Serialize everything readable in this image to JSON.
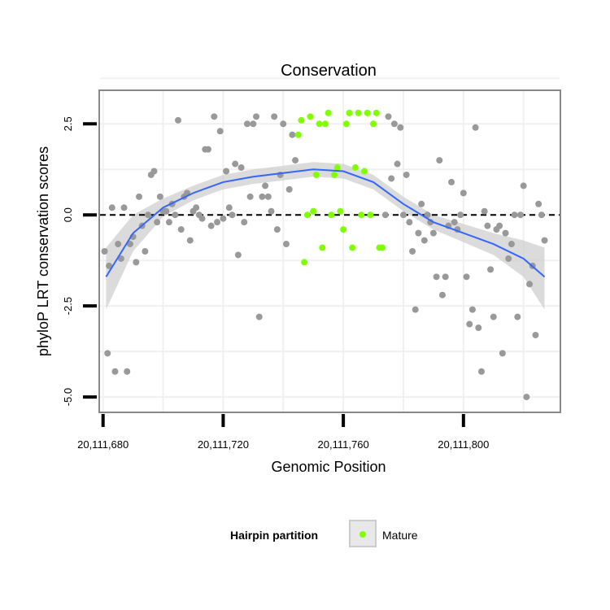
{
  "chart_data": {
    "type": "scatter",
    "title": "Conservation",
    "xlabel": "Genomic Position",
    "ylabel": "phyloP LRT conservation scores",
    "xlim": [
      20111679,
      20111832
    ],
    "ylim": [
      -5.4,
      3.4
    ],
    "x_ticks": [
      {
        "value": 20111680,
        "label": "20,111,680"
      },
      {
        "value": 20111720,
        "label": "20,111,720"
      },
      {
        "value": 20111760,
        "label": "20,111,760"
      },
      {
        "value": 20111800,
        "label": "20,111,800"
      }
    ],
    "y_ticks": [
      {
        "value": -5,
        "label": "-5.0"
      },
      {
        "value": -2.5,
        "label": "-2.5"
      },
      {
        "value": 0,
        "label": "0.0"
      },
      {
        "value": 2.5,
        "label": "2.5"
      }
    ],
    "grid": true,
    "reference_line": {
      "y": 0,
      "style": "dashed"
    },
    "legend": {
      "title": "Hairpin partition",
      "position": "bottom",
      "entries": [
        {
          "name": "Mature",
          "color": "#7fff00"
        }
      ]
    },
    "series": [
      {
        "name": "",
        "color": "#999999",
        "points": [
          [
            20111680.5,
            -1.0
          ],
          [
            20111681.5,
            -3.8
          ],
          [
            20111682,
            -1.4
          ],
          [
            20111683,
            0.2
          ],
          [
            20111684,
            -4.3
          ],
          [
            20111685,
            -0.8
          ],
          [
            20111686,
            -1.2
          ],
          [
            20111687,
            0.2
          ],
          [
            20111688,
            -4.3
          ],
          [
            20111689,
            -0.8
          ],
          [
            20111690,
            -0.6
          ],
          [
            20111691,
            -1.3
          ],
          [
            20111692,
            0.5
          ],
          [
            20111693,
            -0.3
          ],
          [
            20111694,
            -1.0
          ],
          [
            20111695,
            0.0
          ],
          [
            20111696,
            1.1
          ],
          [
            20111697,
            1.2
          ],
          [
            20111698,
            -0.2
          ],
          [
            20111699,
            0.5
          ],
          [
            20111700,
            0.1
          ],
          [
            20111701,
            0.1
          ],
          [
            20111702,
            -0.2
          ],
          [
            20111703,
            0.3
          ],
          [
            20111704,
            0.0
          ],
          [
            20111705,
            2.6
          ],
          [
            20111706,
            -0.4
          ],
          [
            20111707,
            0.5
          ],
          [
            20111708,
            0.6
          ],
          [
            20111709,
            -0.7
          ],
          [
            20111710,
            0.1
          ],
          [
            20111711,
            0.2
          ],
          [
            20111712,
            0.0
          ],
          [
            20111713,
            -0.1
          ],
          [
            20111714,
            1.8
          ],
          [
            20111715,
            1.8
          ],
          [
            20111716,
            -0.3
          ],
          [
            20111717,
            2.7
          ],
          [
            20111718,
            -0.2
          ],
          [
            20111719,
            2.3
          ],
          [
            20111720,
            -0.1
          ],
          [
            20111721,
            1.2
          ],
          [
            20111722,
            0.2
          ],
          [
            20111723,
            0.0
          ],
          [
            20111724,
            1.4
          ],
          [
            20111725,
            -1.1
          ],
          [
            20111726,
            1.3
          ],
          [
            20111727,
            -0.2
          ],
          [
            20111728,
            2.5
          ],
          [
            20111729,
            0.5
          ],
          [
            20111730,
            2.5
          ],
          [
            20111731,
            2.7
          ],
          [
            20111732,
            -2.8
          ],
          [
            20111733,
            0.5
          ],
          [
            20111734,
            0.8
          ],
          [
            20111735,
            0.5
          ],
          [
            20111736,
            0.1
          ],
          [
            20111737,
            2.7
          ],
          [
            20111738,
            -0.4
          ],
          [
            20111739,
            1.1
          ],
          [
            20111740,
            2.5
          ],
          [
            20111741,
            -0.8
          ],
          [
            20111742,
            0.7
          ],
          [
            20111743,
            2.2
          ],
          [
            20111744,
            1.5
          ],
          [
            20111774,
            0.0
          ],
          [
            20111775,
            2.7
          ],
          [
            20111776,
            1.0
          ],
          [
            20111777,
            2.5
          ],
          [
            20111778,
            1.4
          ],
          [
            20111779,
            2.4
          ],
          [
            20111780,
            0.0
          ],
          [
            20111781,
            1.1
          ],
          [
            20111782,
            -0.2
          ],
          [
            20111783,
            -1.0
          ],
          [
            20111784,
            -2.6
          ],
          [
            20111785,
            -0.5
          ],
          [
            20111786,
            0.3
          ],
          [
            20111787,
            -0.7
          ],
          [
            20111788,
            0.0
          ],
          [
            20111789,
            -0.2
          ],
          [
            20111790,
            -0.5
          ],
          [
            20111791,
            -1.7
          ],
          [
            20111792,
            1.5
          ],
          [
            20111793,
            -2.2
          ],
          [
            20111794,
            -1.7
          ],
          [
            20111795,
            -0.3
          ],
          [
            20111796,
            0.9
          ],
          [
            20111797,
            -0.2
          ],
          [
            20111798,
            -0.4
          ],
          [
            20111799,
            0.0
          ],
          [
            20111800,
            0.6
          ],
          [
            20111801,
            -1.7
          ],
          [
            20111802,
            -3.0
          ],
          [
            20111803,
            -2.6
          ],
          [
            20111804,
            2.4
          ],
          [
            20111805,
            -3.1
          ],
          [
            20111806,
            -4.3
          ],
          [
            20111807,
            0.1
          ],
          [
            20111808,
            -0.3
          ],
          [
            20111809,
            -1.5
          ],
          [
            20111810,
            -2.8
          ],
          [
            20111811,
            -0.4
          ],
          [
            20111812,
            -0.3
          ],
          [
            20111813,
            -3.8
          ],
          [
            20111814,
            -0.5
          ],
          [
            20111815,
            -1.2
          ],
          [
            20111816,
            -0.8
          ],
          [
            20111817,
            0.0
          ],
          [
            20111818,
            -2.8
          ],
          [
            20111819,
            0.0
          ],
          [
            20111820,
            0.8
          ],
          [
            20111821,
            -5.0
          ],
          [
            20111822,
            -1.9
          ],
          [
            20111823,
            -1.4
          ],
          [
            20111824,
            -3.3
          ],
          [
            20111825,
            0.3
          ],
          [
            20111826,
            0.0
          ],
          [
            20111827,
            -0.7
          ]
        ]
      },
      {
        "name": "Mature",
        "color": "#7fff00",
        "points": [
          [
            20111745,
            2.2
          ],
          [
            20111746,
            2.6
          ],
          [
            20111747,
            -1.3
          ],
          [
            20111748,
            0.0
          ],
          [
            20111749,
            2.7
          ],
          [
            20111750,
            0.1
          ],
          [
            20111751,
            1.1
          ],
          [
            20111752,
            2.5
          ],
          [
            20111753,
            -0.9
          ],
          [
            20111754,
            2.5
          ],
          [
            20111755,
            2.8
          ],
          [
            20111756,
            0.0
          ],
          [
            20111757,
            1.1
          ],
          [
            20111758,
            1.3
          ],
          [
            20111759,
            0.1
          ],
          [
            20111760,
            -0.4
          ],
          [
            20111761,
            2.5
          ],
          [
            20111762,
            2.8
          ],
          [
            20111763,
            -0.9
          ],
          [
            20111764,
            1.3
          ],
          [
            20111765,
            2.8
          ],
          [
            20111766,
            0.0
          ],
          [
            20111767,
            1.2
          ],
          [
            20111768,
            2.8
          ],
          [
            20111769,
            0.0
          ],
          [
            20111770,
            2.5
          ],
          [
            20111771,
            2.8
          ],
          [
            20111772,
            -0.9
          ],
          [
            20111773,
            -0.9
          ]
        ]
      }
    ],
    "smooth": {
      "color": "#3366ff",
      "band_color": "#cccccc",
      "x": [
        20111681,
        20111690,
        20111700,
        20111710,
        20111720,
        20111730,
        20111740,
        20111750,
        20111760,
        20111770,
        20111780,
        20111790,
        20111800,
        20111810,
        20111820,
        20111827
      ],
      "y": [
        -1.7,
        -0.5,
        0.2,
        0.6,
        0.9,
        1.05,
        1.15,
        1.25,
        1.2,
        0.9,
        0.3,
        -0.2,
        -0.5,
        -0.8,
        -1.2,
        -1.7
      ],
      "lower": [
        -2.6,
        -1.0,
        -0.05,
        0.4,
        0.7,
        0.85,
        0.95,
        1.05,
        1.0,
        0.7,
        0.1,
        -0.4,
        -0.75,
        -1.1,
        -1.7,
        -2.6
      ],
      "upper": [
        -0.9,
        0.0,
        0.45,
        0.8,
        1.1,
        1.25,
        1.35,
        1.45,
        1.4,
        1.1,
        0.5,
        0.0,
        -0.25,
        -0.5,
        -0.7,
        -0.9
      ]
    }
  }
}
